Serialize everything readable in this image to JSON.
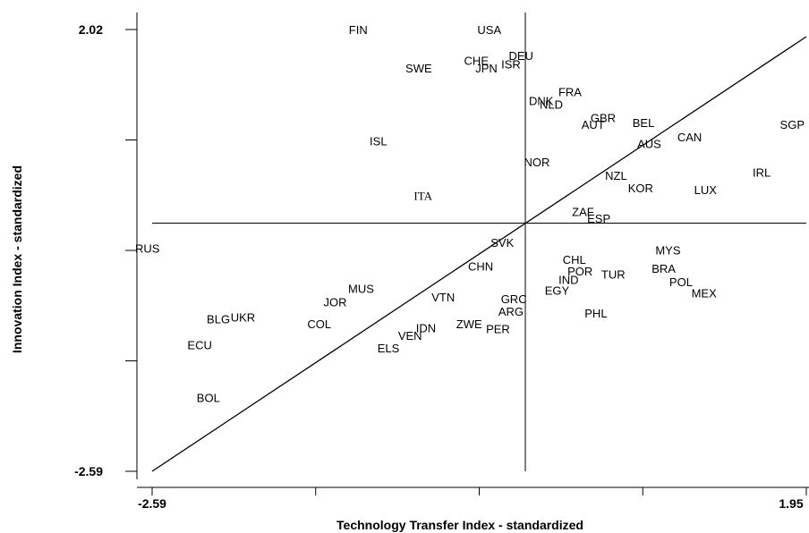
{
  "chart_data": {
    "type": "scatter",
    "xlabel": "Technology Transfer Index - standardized",
    "ylabel": "Innovation Index - standardized",
    "xlim": [
      -2.59,
      1.95
    ],
    "ylim": [
      -2.59,
      2.02
    ],
    "x_tick_labels": [
      "-2.59",
      "1.95"
    ],
    "y_tick_labels": [
      "2.02",
      "-2.59"
    ],
    "grid": false,
    "reference_lines": {
      "vertical_x": 0,
      "horizontal_y": 0,
      "diagonal": true
    },
    "points": [
      {
        "label": "FIN",
        "x": -1.16,
        "y": 2.02
      },
      {
        "label": "USA",
        "x": -0.25,
        "y": 2.02
      },
      {
        "label": "DEU",
        "x": -0.03,
        "y": 1.75
      },
      {
        "label": "CHE",
        "x": -0.34,
        "y": 1.7
      },
      {
        "label": "JPN",
        "x": -0.27,
        "y": 1.62
      },
      {
        "label": "ISR",
        "x": -0.1,
        "y": 1.66
      },
      {
        "label": "SWE",
        "x": -0.74,
        "y": 1.62
      },
      {
        "label": "FRA",
        "x": 0.31,
        "y": 1.37
      },
      {
        "label": "DNK",
        "x": 0.11,
        "y": 1.28
      },
      {
        "label": "NLD",
        "x": 0.18,
        "y": 1.24
      },
      {
        "label": "GBR",
        "x": 0.54,
        "y": 1.1
      },
      {
        "label": "AUT",
        "x": 0.47,
        "y": 1.03
      },
      {
        "label": "BEL",
        "x": 0.82,
        "y": 1.05
      },
      {
        "label": "SGP",
        "x": 1.86,
        "y": 1.03
      },
      {
        "label": "CAN",
        "x": 1.14,
        "y": 0.9
      },
      {
        "label": "AUS",
        "x": 0.86,
        "y": 0.83
      },
      {
        "label": "ISL",
        "x": -1.02,
        "y": 0.86
      },
      {
        "label": "NOR",
        "x": 0.08,
        "y": 0.64
      },
      {
        "label": "NZL",
        "x": 0.63,
        "y": 0.5
      },
      {
        "label": "IRL",
        "x": 1.64,
        "y": 0.53
      },
      {
        "label": "KOR",
        "x": 0.8,
        "y": 0.37
      },
      {
        "label": "LUX",
        "x": 1.25,
        "y": 0.35
      },
      {
        "label": "ITA",
        "x": -0.71,
        "y": 0.29
      },
      {
        "label": "ZAF",
        "x": 0.4,
        "y": 0.12
      },
      {
        "label": "ESP",
        "x": 0.51,
        "y": 0.05
      },
      {
        "label": "RUS",
        "x": -2.63,
        "y": -0.26
      },
      {
        "label": "SVK",
        "x": -0.16,
        "y": -0.2
      },
      {
        "label": "MYS",
        "x": 0.99,
        "y": -0.28
      },
      {
        "label": "CHL",
        "x": 0.34,
        "y": -0.38
      },
      {
        "label": "CHN",
        "x": -0.31,
        "y": -0.45
      },
      {
        "label": "BRA",
        "x": 0.96,
        "y": -0.47
      },
      {
        "label": "POR",
        "x": 0.38,
        "y": -0.5
      },
      {
        "label": "TUR",
        "x": 0.61,
        "y": -0.53
      },
      {
        "label": "IND",
        "x": 0.3,
        "y": -0.59
      },
      {
        "label": "POL",
        "x": 1.08,
        "y": -0.61
      },
      {
        "label": "MUS",
        "x": -1.14,
        "y": -0.68
      },
      {
        "label": "EGY",
        "x": 0.22,
        "y": -0.7
      },
      {
        "label": "MEX",
        "x": 1.24,
        "y": -0.73
      },
      {
        "label": "JOR",
        "x": -1.32,
        "y": -0.82
      },
      {
        "label": "VTN",
        "x": -0.57,
        "y": -0.77
      },
      {
        "label": "GRC",
        "x": -0.08,
        "y": -0.79
      },
      {
        "label": "BLG",
        "x": -2.13,
        "y": -1.0
      },
      {
        "label": "UKR",
        "x": -1.96,
        "y": -0.98
      },
      {
        "label": "PHL",
        "x": 0.49,
        "y": -0.94
      },
      {
        "label": "ARG",
        "x": -0.1,
        "y": -0.92
      },
      {
        "label": "COL",
        "x": -1.43,
        "y": -1.05
      },
      {
        "label": "ZWE",
        "x": -0.39,
        "y": -1.05
      },
      {
        "label": "IDN",
        "x": -0.69,
        "y": -1.09
      },
      {
        "label": "PER",
        "x": -0.19,
        "y": -1.1
      },
      {
        "label": "VEN",
        "x": -0.8,
        "y": -1.17
      },
      {
        "label": "ECU",
        "x": -2.26,
        "y": -1.27
      },
      {
        "label": "ELS",
        "x": -0.95,
        "y": -1.3
      },
      {
        "label": "BOL",
        "x": -2.2,
        "y": -1.82
      }
    ]
  }
}
